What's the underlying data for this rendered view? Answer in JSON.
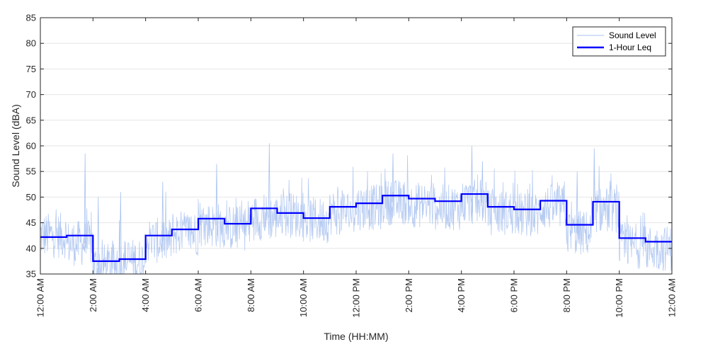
{
  "chart_data": {
    "type": "line",
    "xlabel": "Time (HH:MM)",
    "ylabel": "Sound Level (dBA)",
    "xlim": [
      0,
      24
    ],
    "ylim": [
      35,
      85
    ],
    "y_ticks": [
      35,
      40,
      45,
      50,
      55,
      60,
      65,
      70,
      75,
      80,
      85
    ],
    "x_ticks": [
      {
        "hour": 0,
        "label": "12:00 AM"
      },
      {
        "hour": 2,
        "label": "2:00 AM"
      },
      {
        "hour": 4,
        "label": "4:00 AM"
      },
      {
        "hour": 6,
        "label": "6:00 AM"
      },
      {
        "hour": 8,
        "label": "8:00 AM"
      },
      {
        "hour": 10,
        "label": "10:00 AM"
      },
      {
        "hour": 12,
        "label": "12:00 PM"
      },
      {
        "hour": 14,
        "label": "2:00 PM"
      },
      {
        "hour": 16,
        "label": "4:00 PM"
      },
      {
        "hour": 18,
        "label": "6:00 PM"
      },
      {
        "hour": 20,
        "label": "8:00 PM"
      },
      {
        "hour": 22,
        "label": "10:00 PM"
      },
      {
        "hour": 24,
        "label": "12:00 AM"
      }
    ],
    "grid": true,
    "legend_position": "top-right",
    "series": [
      {
        "name": "Sound Level",
        "style": "thin-noisy-line",
        "color": "#a9c2f0",
        "hourly_mean": [
          42.5,
          41.0,
          36.5,
          37.5,
          41.5,
          43.0,
          44.5,
          44.0,
          46.0,
          46.5,
          45.5,
          47.0,
          48.0,
          49.0,
          48.5,
          48.0,
          49.0,
          47.0,
          46.5,
          48.0,
          43.0,
          47.5,
          40.5,
          40.0
        ],
        "hourly_spikes": [
          {
            "hour": 1.7,
            "value": 58.5
          },
          {
            "hour": 2.2,
            "value": 50.0
          },
          {
            "hour": 3.05,
            "value": 51.0
          },
          {
            "hour": 4.65,
            "value": 53.0
          },
          {
            "hour": 6.7,
            "value": 56.5
          },
          {
            "hour": 8.7,
            "value": 60.5
          },
          {
            "hour": 13.4,
            "value": 58.5
          },
          {
            "hour": 16.4,
            "value": 60.0
          },
          {
            "hour": 16.8,
            "value": 57.0
          },
          {
            "hour": 20.4,
            "value": 55.0
          },
          {
            "hour": 21.05,
            "value": 59.5
          }
        ]
      },
      {
        "name": "1-Hour Leq",
        "style": "step",
        "color": "#0000ff",
        "x": [
          0,
          1,
          2,
          3,
          4,
          5,
          6,
          7,
          8,
          9,
          10,
          11,
          12,
          13,
          14,
          15,
          16,
          17,
          18,
          19,
          20,
          21,
          22,
          23
        ],
        "values": [
          42.2,
          42.5,
          37.5,
          37.9,
          42.5,
          43.7,
          45.8,
          44.8,
          47.8,
          46.9,
          45.9,
          48.1,
          48.8,
          50.3,
          49.7,
          49.2,
          50.6,
          48.1,
          47.6,
          49.3,
          44.6,
          49.1,
          42.0,
          41.3
        ]
      }
    ]
  }
}
